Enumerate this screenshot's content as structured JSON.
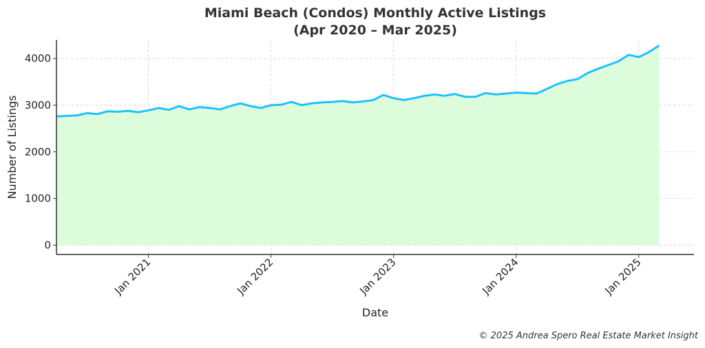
{
  "footer": "© 2025 Andrea Spero Real Estate Market Insight",
  "chart_data": {
    "type": "area",
    "title_lines": [
      "Miami Beach (Condos) Monthly Active Listings",
      "(Apr 2020 – Mar 2025)"
    ],
    "xlabel": "Date",
    "ylabel": "Number of Listings",
    "x_tick_labels": [
      "Jan 2021",
      "Jan 2022",
      "Jan 2023",
      "Jan 2024",
      "Jan 2025"
    ],
    "y_ticks": [
      0,
      1000,
      2000,
      3000,
      4000
    ],
    "ylim": [
      -200,
      4400
    ],
    "grid": true,
    "line_color": "#1ec1ff",
    "fill_color": "#dcfcdc",
    "x": [
      "2020-04",
      "2020-05",
      "2020-06",
      "2020-07",
      "2020-08",
      "2020-09",
      "2020-10",
      "2020-11",
      "2020-12",
      "2021-01",
      "2021-02",
      "2021-03",
      "2021-04",
      "2021-05",
      "2021-06",
      "2021-07",
      "2021-08",
      "2021-09",
      "2021-10",
      "2021-11",
      "2021-12",
      "2022-01",
      "2022-02",
      "2022-03",
      "2022-04",
      "2022-05",
      "2022-06",
      "2022-07",
      "2022-08",
      "2022-09",
      "2022-10",
      "2022-11",
      "2022-12",
      "2023-01",
      "2023-02",
      "2023-03",
      "2023-04",
      "2023-05",
      "2023-06",
      "2023-07",
      "2023-08",
      "2023-09",
      "2023-10",
      "2023-11",
      "2023-12",
      "2024-01",
      "2024-02",
      "2024-03",
      "2024-04",
      "2024-05",
      "2024-06",
      "2024-07",
      "2024-08",
      "2024-09",
      "2024-10",
      "2024-11",
      "2024-12",
      "2025-01",
      "2025-02",
      "2025-03"
    ],
    "values": [
      2760,
      2770,
      2780,
      2830,
      2810,
      2870,
      2860,
      2880,
      2850,
      2890,
      2940,
      2900,
      2980,
      2910,
      2960,
      2940,
      2910,
      2980,
      3040,
      2980,
      2940,
      3000,
      3010,
      3070,
      3000,
      3040,
      3060,
      3070,
      3090,
      3060,
      3080,
      3110,
      3220,
      3150,
      3110,
      3150,
      3200,
      3230,
      3200,
      3240,
      3180,
      3180,
      3260,
      3230,
      3250,
      3270,
      3260,
      3250,
      3350,
      3450,
      3520,
      3560,
      3690,
      3780,
      3860,
      3940,
      4080,
      4030,
      4140,
      4280
    ]
  }
}
